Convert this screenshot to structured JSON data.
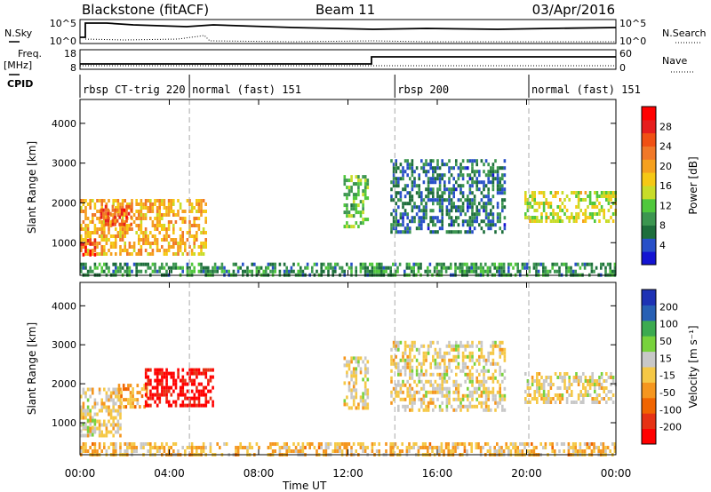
{
  "header": {
    "radar": "Blackstone (fitACF)",
    "beam": "Beam 11",
    "date": "03/Apr/2016"
  },
  "noise_panel": {
    "left_label": "N.Sky",
    "right_label": "N.Search",
    "ticks": [
      "10^5",
      "10^0"
    ]
  },
  "freq_panel": {
    "left_label_line1": "Freq.",
    "left_label_line2": "[MHz]",
    "left_ticks": [
      "18",
      "8"
    ],
    "right_label": "Nave",
    "right_ticks": [
      "60",
      "0"
    ]
  },
  "cpid": {
    "label": "CPID",
    "segments": [
      {
        "name": "rbsp CT-trig 220",
        "start_hr": 0
      },
      {
        "name": "normal (fast) 151",
        "start_hr": 4.9
      },
      {
        "name": "rbsp 200",
        "start_hr": 14.1
      },
      {
        "name": "normal (fast) 151",
        "start_hr": 20.1
      }
    ]
  },
  "colors": {
    "power": [
      "#1414d2",
      "#2850c8",
      "#1e6e3c",
      "#3c9650",
      "#50c83c",
      "#c8dc28",
      "#f5c814",
      "#f5a01e",
      "#f07828",
      "#f05014",
      "#e61e1e",
      "#ff0000"
    ],
    "velocity": [
      "#ff0000",
      "#e63214",
      "#f06400",
      "#f5961e",
      "#f5c846",
      "#c8c8c8",
      "#78d23c",
      "#3caa50",
      "#2860b4",
      "#1e32b4"
    ]
  },
  "chart_data": [
    {
      "type": "heatmap",
      "name": "power",
      "xlabel": "Time UT",
      "ylabel": "Slant Range [km]",
      "xlim": [
        0,
        24
      ],
      "ylim": [
        180,
        4600
      ],
      "x_ticks": [
        "00:00",
        "04:00",
        "08:00",
        "12:00",
        "16:00",
        "20:00",
        "00:00"
      ],
      "y_ticks": [
        1000,
        2000,
        3000,
        4000
      ],
      "colorbar_label": "Power [dB]",
      "colorbar_ticks": [
        "4",
        "8",
        "12",
        "16",
        "20",
        "24",
        "28"
      ],
      "colorbar_range": [
        0,
        30
      ],
      "regions": [
        {
          "t0": 0.0,
          "t1": 5.6,
          "r_lo": 700,
          "r_hi": 2100,
          "value": 18
        },
        {
          "t0": 0.9,
          "t1": 2.3,
          "r_lo": 1500,
          "r_hi": 1950,
          "value": 24
        },
        {
          "t0": 0.0,
          "t1": 0.7,
          "r_lo": 700,
          "r_hi": 1100,
          "value": 28
        },
        {
          "t0": 11.8,
          "t1": 12.9,
          "r_lo": 1400,
          "r_hi": 2700,
          "value": 11
        },
        {
          "t0": 13.9,
          "t1": 19.0,
          "r_lo": 1300,
          "r_hi": 3100,
          "value": 6
        },
        {
          "t0": 19.9,
          "t1": 24.0,
          "r_lo": 1500,
          "r_hi": 2300,
          "value": 14
        },
        {
          "t0": 0.0,
          "t1": 24.0,
          "r_lo": 200,
          "r_hi": 500,
          "value": 8
        }
      ]
    },
    {
      "type": "heatmap",
      "name": "velocity",
      "xlabel": "Time UT",
      "ylabel": "Slant Range [km]",
      "xlim": [
        0,
        24
      ],
      "ylim": [
        180,
        4600
      ],
      "x_ticks": [
        "00:00",
        "04:00",
        "08:00",
        "12:00",
        "16:00",
        "20:00",
        "00:00"
      ],
      "y_ticks": [
        1000,
        2000,
        3000,
        4000
      ],
      "colorbar_label": "Velocity [m s⁻¹]",
      "colorbar_ticks": [
        "200",
        "100",
        "50",
        "15",
        "-15",
        "-50",
        "-100",
        "-200"
      ],
      "colorbar_range": [
        -250,
        250
      ],
      "regions": [
        {
          "t0": 0.0,
          "t1": 1.8,
          "r_lo": 700,
          "r_hi": 1900,
          "value": -10
        },
        {
          "t0": 0.0,
          "t1": 0.7,
          "r_lo": 700,
          "r_hi": 1100,
          "value": 30
        },
        {
          "t0": 1.7,
          "t1": 3.0,
          "r_lo": 1400,
          "r_hi": 2000,
          "value": -60
        },
        {
          "t0": 2.9,
          "t1": 6.0,
          "r_lo": 1400,
          "r_hi": 2400,
          "value": -230
        },
        {
          "t0": 11.8,
          "t1": 12.9,
          "r_lo": 1400,
          "r_hi": 2700,
          "value": 0
        },
        {
          "t0": 13.9,
          "t1": 19.0,
          "r_lo": 1300,
          "r_hi": 3100,
          "value": 0
        },
        {
          "t0": 19.9,
          "t1": 24.0,
          "r_lo": 1500,
          "r_hi": 2300,
          "value": 0
        },
        {
          "t0": 0.0,
          "t1": 24.0,
          "r_lo": 200,
          "r_hi": 500,
          "value": -40
        }
      ]
    }
  ]
}
